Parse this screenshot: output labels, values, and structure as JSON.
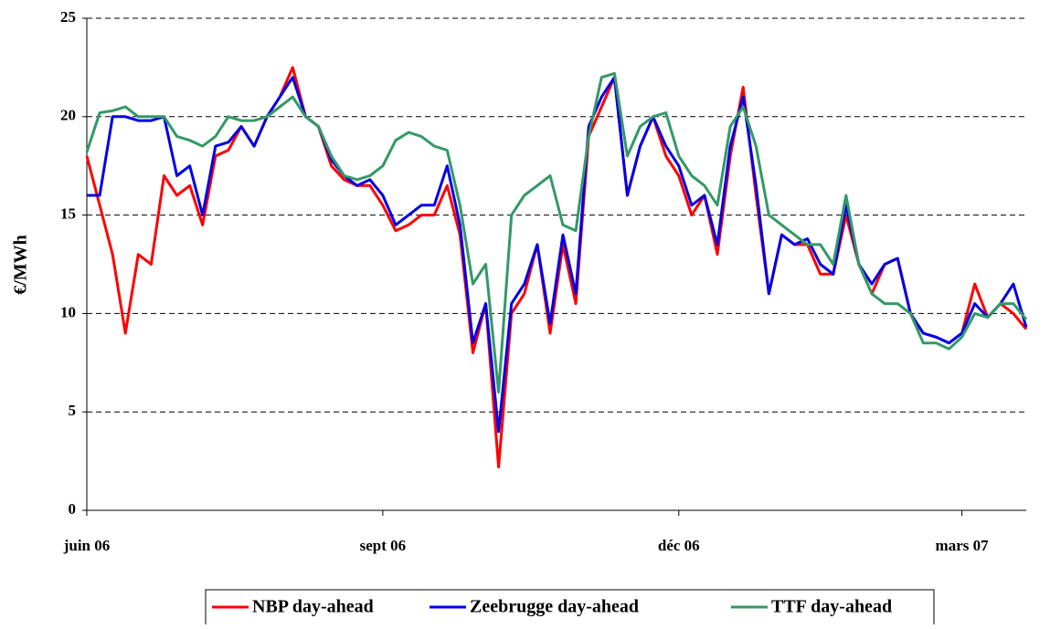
{
  "chart_data": {
    "type": "line",
    "y_label": "€/MWh",
    "categories": [
      "juin 06",
      null,
      null,
      null,
      null,
      null,
      null,
      null,
      null,
      null,
      null,
      null,
      null,
      null,
      null,
      null,
      null,
      null,
      null,
      null,
      null,
      null,
      null,
      "sept 06",
      null,
      null,
      null,
      null,
      null,
      null,
      null,
      null,
      null,
      null,
      null,
      null,
      null,
      null,
      null,
      null,
      null,
      null,
      null,
      null,
      null,
      null,
      "déc 06",
      null,
      null,
      null,
      null,
      null,
      null,
      null,
      null,
      null,
      null,
      null,
      null,
      null,
      null,
      null,
      null,
      null,
      null,
      null,
      null,
      null,
      "mars 07",
      null,
      null,
      null,
      null,
      null
    ],
    "series": [
      {
        "name": "NBP day-ahead",
        "color": "#ff0000",
        "values": [
          18,
          15.5,
          13,
          9,
          13,
          12.5,
          17,
          16,
          16.5,
          14.5,
          18,
          18.3,
          19.5,
          18.5,
          20,
          21,
          22.5,
          20,
          19.5,
          17.5,
          16.8,
          16.5,
          16.5,
          15.5,
          14.2,
          14.5,
          15,
          15,
          16.5,
          14,
          8,
          10.5,
          2.2,
          10,
          11,
          13.5,
          9,
          13.5,
          10.5,
          19,
          20.5,
          22,
          16,
          18.5,
          20,
          18,
          17,
          15,
          16,
          13,
          18,
          21.5,
          16,
          11,
          14,
          13.5,
          13.5,
          12,
          12,
          15,
          12.5,
          11,
          12.5,
          12.8,
          10,
          9,
          8.8,
          8.5,
          9,
          11.5,
          9.8,
          10.5,
          10,
          9.2
        ]
      },
      {
        "name": "Zeebrugge day-ahead",
        "color": "#0000e6",
        "values": [
          16,
          16,
          20,
          20,
          19.8,
          19.8,
          20,
          17,
          17.5,
          15,
          18.5,
          18.7,
          19.5,
          18.5,
          20,
          21,
          22,
          20,
          19.5,
          17.8,
          17,
          16.5,
          16.8,
          16,
          14.5,
          15,
          15.5,
          15.5,
          17.5,
          14.5,
          8.5,
          10.5,
          4,
          10.5,
          11.5,
          13.5,
          9.5,
          14,
          11,
          19.5,
          21,
          22,
          16,
          18.5,
          20,
          18.5,
          17.5,
          15.5,
          16,
          13.5,
          18.5,
          21,
          16.5,
          11,
          14,
          13.5,
          13.8,
          12.5,
          12,
          15.5,
          12.5,
          11.5,
          12.5,
          12.8,
          10,
          9,
          8.8,
          8.5,
          9,
          10.5,
          9.8,
          10.5,
          11.5,
          9.3
        ]
      },
      {
        "name": "TTF day-ahead",
        "color": "#339966",
        "values": [
          18.2,
          20.2,
          20.3,
          20.5,
          20,
          20,
          20,
          19,
          18.8,
          18.5,
          19,
          20,
          19.8,
          19.8,
          20,
          20.5,
          21,
          20,
          19.5,
          18,
          17,
          16.8,
          17,
          17.5,
          18.8,
          19.2,
          19,
          18.5,
          18.3,
          15.5,
          11.5,
          12.5,
          6,
          15,
          16,
          16.5,
          17,
          14.5,
          14.2,
          19,
          22,
          22.2,
          18,
          19.5,
          20,
          20.2,
          18,
          17,
          16.5,
          15.5,
          19.5,
          20.5,
          18.5,
          15,
          14.5,
          14,
          13.5,
          13.5,
          12.5,
          16,
          12.5,
          11,
          10.5,
          10.5,
          10,
          8.5,
          8.5,
          8.2,
          8.8,
          10,
          9.8,
          10.5,
          10.5,
          9.7
        ]
      }
    ],
    "ylim": [
      0,
      25
    ],
    "yticks": [
      0,
      5,
      10,
      15,
      20,
      25
    ],
    "grid": true
  }
}
